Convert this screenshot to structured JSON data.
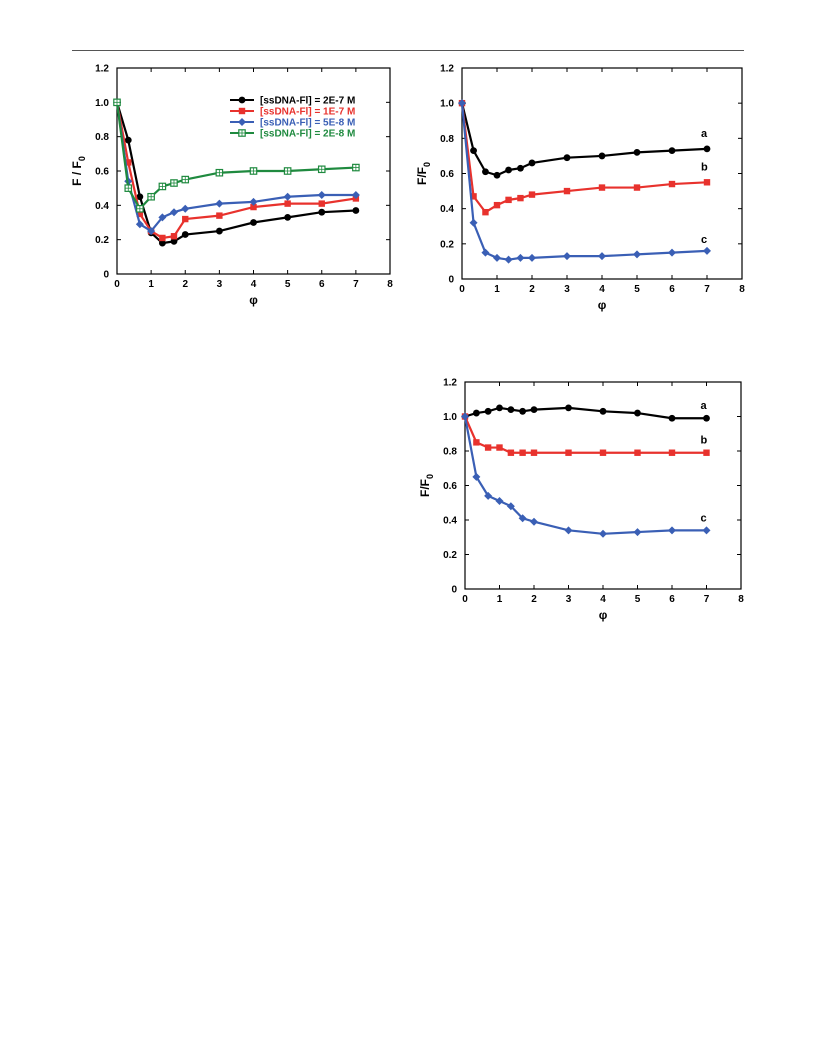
{
  "chart_data": [
    {
      "type": "line",
      "ylabel": "F / F",
      "ylabel_sub": "0",
      "xlabel": "φ",
      "xlim": [
        0,
        8
      ],
      "ylim": [
        0,
        1.2
      ],
      "xticks": [
        "0",
        "1",
        "2",
        "3",
        "4",
        "5",
        "6",
        "7",
        "8"
      ],
      "yticks": [
        "0",
        "0.2",
        "0.4",
        "0.6",
        "0.8",
        "1.0",
        "1.2"
      ],
      "legend_position": "top-right",
      "series": [
        {
          "name": "[ssDNA-Fl] = 2E-7 M",
          "color": "#000000",
          "marker": "circle",
          "x": [
            0,
            0.33,
            0.67,
            1.0,
            1.33,
            1.67,
            2,
            3,
            4,
            5,
            6,
            7
          ],
          "y": [
            1.0,
            0.78,
            0.45,
            0.24,
            0.18,
            0.19,
            0.23,
            0.25,
            0.3,
            0.33,
            0.36,
            0.37
          ]
        },
        {
          "name": "[ssDNA-Fl] = 1E-7 M",
          "color": "#e8322d",
          "marker": "square",
          "x": [
            0,
            0.33,
            0.67,
            1.0,
            1.33,
            1.67,
            2,
            3,
            4,
            5,
            6,
            7
          ],
          "y": [
            1.0,
            0.65,
            0.35,
            0.25,
            0.21,
            0.22,
            0.32,
            0.34,
            0.39,
            0.41,
            0.41,
            0.44
          ]
        },
        {
          "name": "[ssDNA-Fl] = 5E-8 M",
          "color": "#3a5fb5",
          "marker": "diamond",
          "x": [
            0,
            0.33,
            0.67,
            1.0,
            1.33,
            1.67,
            2,
            3,
            4,
            5,
            6,
            7
          ],
          "y": [
            1.0,
            0.54,
            0.29,
            0.25,
            0.33,
            0.36,
            0.38,
            0.41,
            0.42,
            0.45,
            0.46,
            0.46
          ]
        },
        {
          "name": "[ssDNA-Fl] = 2E-8 M",
          "color": "#1f8a3f",
          "marker": "square-open",
          "x": [
            0,
            0.33,
            0.67,
            1.0,
            1.33,
            1.67,
            2,
            3,
            4,
            5,
            6,
            7
          ],
          "y": [
            1.0,
            0.5,
            0.38,
            0.45,
            0.51,
            0.53,
            0.55,
            0.59,
            0.6,
            0.6,
            0.61,
            0.62
          ]
        }
      ]
    },
    {
      "type": "line",
      "ylabel": "F/F",
      "ylabel_sub": "0",
      "xlabel": "φ",
      "xlim": [
        0,
        8
      ],
      "ylim": [
        0,
        1.2
      ],
      "xticks": [
        "0",
        "1",
        "2",
        "3",
        "4",
        "5",
        "6",
        "7",
        "8"
      ],
      "yticks": [
        "0",
        "0.2",
        "0.4",
        "0.6",
        "0.8",
        "1.0",
        "1.2"
      ],
      "series": [
        {
          "name": "a",
          "color": "#000000",
          "marker": "circle",
          "x": [
            0,
            0.33,
            0.67,
            1.0,
            1.33,
            1.67,
            2,
            3,
            4,
            5,
            6,
            7
          ],
          "y": [
            1.0,
            0.73,
            0.61,
            0.59,
            0.62,
            0.63,
            0.66,
            0.69,
            0.7,
            0.72,
            0.73,
            0.74
          ]
        },
        {
          "name": "b",
          "color": "#e8322d",
          "marker": "square",
          "x": [
            0,
            0.33,
            0.67,
            1.0,
            1.33,
            1.67,
            2,
            3,
            4,
            5,
            6,
            7
          ],
          "y": [
            1.0,
            0.47,
            0.38,
            0.42,
            0.45,
            0.46,
            0.48,
            0.5,
            0.52,
            0.52,
            0.54,
            0.55
          ]
        },
        {
          "name": "c",
          "color": "#3a5fb5",
          "marker": "diamond",
          "x": [
            0,
            0.33,
            0.67,
            1.0,
            1.33,
            1.67,
            2,
            3,
            4,
            5,
            6,
            7
          ],
          "y": [
            1.0,
            0.32,
            0.15,
            0.12,
            0.11,
            0.12,
            0.12,
            0.13,
            0.13,
            0.14,
            0.15,
            0.16
          ]
        }
      ]
    },
    {
      "type": "line",
      "ylabel": "F/F",
      "ylabel_sub": "0",
      "xlabel": "φ",
      "xlim": [
        0,
        8
      ],
      "ylim": [
        0,
        1.2
      ],
      "xticks": [
        "0",
        "1",
        "2",
        "3",
        "4",
        "5",
        "6",
        "7",
        "8"
      ],
      "yticks": [
        "0",
        "0.2",
        "0.4",
        "0.6",
        "0.8",
        "1.0",
        "1.2"
      ],
      "series": [
        {
          "name": "a",
          "color": "#000000",
          "marker": "circle",
          "x": [
            0,
            0.33,
            0.67,
            1.0,
            1.33,
            1.67,
            2,
            3,
            4,
            5,
            6,
            7
          ],
          "y": [
            1.0,
            1.02,
            1.03,
            1.05,
            1.04,
            1.03,
            1.04,
            1.05,
            1.03,
            1.02,
            0.99,
            0.99
          ]
        },
        {
          "name": "b",
          "color": "#e8322d",
          "marker": "square",
          "x": [
            0,
            0.33,
            0.67,
            1.0,
            1.33,
            1.67,
            2,
            3,
            4,
            5,
            6,
            7
          ],
          "y": [
            1.0,
            0.85,
            0.82,
            0.82,
            0.79,
            0.79,
            0.79,
            0.79,
            0.79,
            0.79,
            0.79,
            0.79
          ]
        },
        {
          "name": "c",
          "color": "#3a5fb5",
          "marker": "diamond",
          "x": [
            0,
            0.33,
            0.67,
            1.0,
            1.33,
            1.67,
            2,
            3,
            4,
            5,
            6,
            7
          ],
          "y": [
            1.0,
            0.65,
            0.54,
            0.51,
            0.48,
            0.41,
            0.39,
            0.34,
            0.32,
            0.33,
            0.34,
            0.34
          ]
        }
      ]
    }
  ]
}
